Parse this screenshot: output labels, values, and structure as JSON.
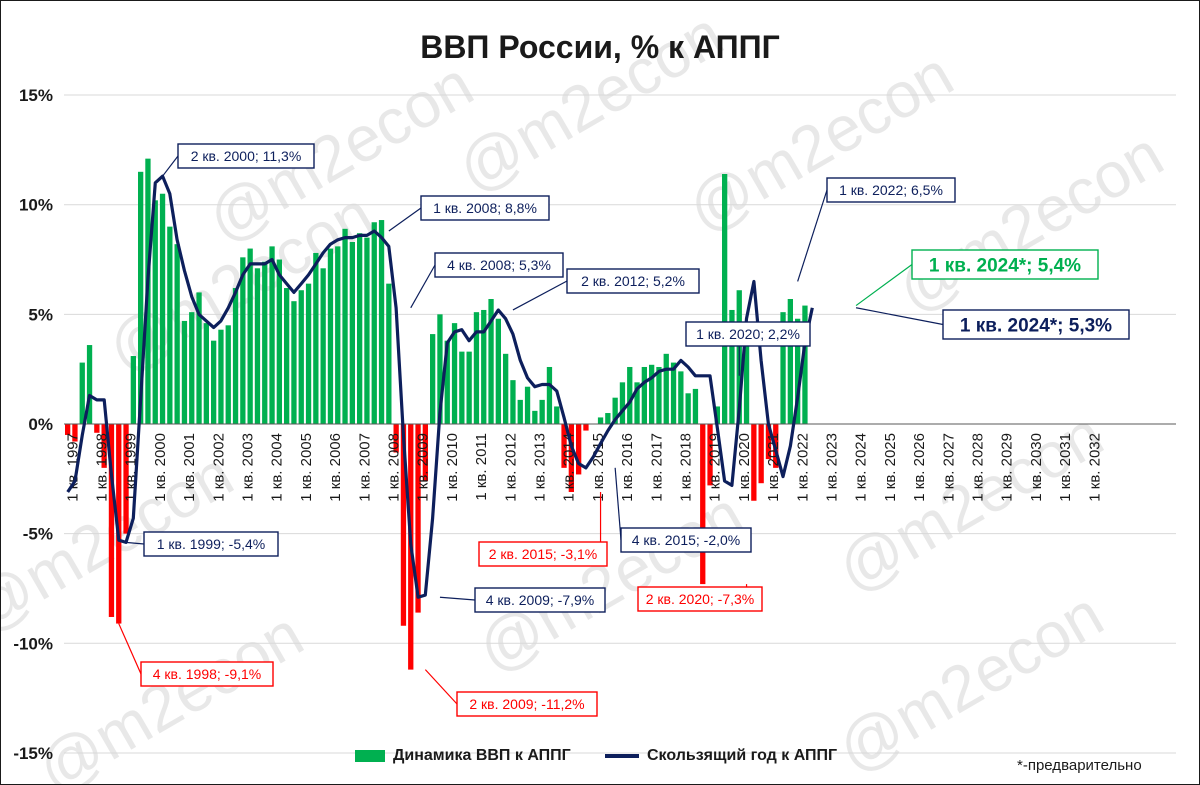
{
  "title": "ВВП России, % к АППГ",
  "footnote": "*-предварительно",
  "colors": {
    "positive": "#00b050",
    "negative": "#ff0000",
    "line": "#0d1f5c",
    "grid": "#d9d9d9",
    "watermark": "#d9d9d9"
  },
  "watermark": "@m2econ",
  "chart_data": {
    "type": "bar+line",
    "ylim": [
      -15,
      15
    ],
    "y_ticks": [
      "15%",
      "10%",
      "5%",
      "0%",
      "-5%",
      "-10%",
      "-15%"
    ],
    "x_labels": [
      "1 кв. 1997",
      "1 кв. 1998",
      "1 кв. 1999",
      "1 кв. 2000",
      "1 кв. 2001",
      "1 кв. 2002",
      "1 кв. 2003",
      "1 кв. 2004",
      "1 кв. 2005",
      "1 кв. 2006",
      "1 кв. 2007",
      "1 кв. 2008",
      "1 кв. 2009",
      "1 кв. 2010",
      "1 кв. 2011",
      "1 кв. 2012",
      "1 кв. 2013",
      "1 кв. 2014",
      "1 кв. 2015",
      "1 кв. 2016",
      "1 кв. 2017",
      "1 кв. 2018",
      "1 кв. 2019",
      "1 кв. 2020",
      "1 кв. 2021",
      "1 кв. 2022",
      "1 кв. 2023",
      "1 кв. 2024",
      "1 кв. 2025",
      "1 кв. 2026",
      "1 кв. 2027",
      "1 кв. 2028",
      "1 кв. 2029",
      "1 кв. 2030",
      "1 кв. 2031",
      "1 кв. 2032"
    ],
    "series": [
      {
        "name": "Динамика ВВП к АППГ",
        "type": "bar",
        "values": [
          -0.5,
          -0.8,
          2.8,
          3.6,
          -0.4,
          -2.0,
          -8.8,
          -9.1,
          -5.0,
          3.1,
          11.5,
          12.1,
          10.2,
          10.5,
          9.0,
          8.2,
          4.7,
          5.1,
          6.0,
          4.6,
          3.8,
          4.3,
          4.5,
          6.2,
          7.6,
          8.0,
          7.1,
          7.4,
          8.1,
          7.5,
          6.2,
          5.6,
          6.1,
          6.4,
          7.8,
          7.1,
          8.0,
          8.1,
          8.9,
          8.3,
          8.7,
          8.5,
          9.2,
          9.3,
          6.4,
          -1.3,
          -9.2,
          -11.2,
          -8.6,
          -2.6,
          4.1,
          5.0,
          3.8,
          4.6,
          3.3,
          3.3,
          5.1,
          5.2,
          5.7,
          4.8,
          3.2,
          2.0,
          1.1,
          1.7,
          0.6,
          1.1,
          2.6,
          0.8,
          -2.0,
          -3.1,
          -2.3,
          -0.3,
          0.0,
          0.3,
          0.5,
          1.2,
          1.9,
          2.6,
          1.9,
          2.6,
          2.7,
          2.6,
          3.2,
          2.8,
          2.4,
          1.4,
          1.6,
          -7.3,
          -2.8,
          0.8,
          11.4,
          5.2,
          6.1,
          3.7,
          -3.5,
          -2.7,
          -1.6,
          -2.0,
          5.1,
          5.7,
          4.8,
          5.4
        ],
        "annotations": [
          {
            "label": "4 кв. 1998; -9,1%",
            "value": -9.1
          },
          {
            "label": "2 кв. 2009; -11,2%",
            "value": -11.2
          },
          {
            "label": "2 кв. 2015; -3,1%",
            "value": -3.1
          },
          {
            "label": "2 кв. 2020; -7,3%",
            "value": -7.3
          },
          {
            "label": "1 кв. 2024*; 5,4%",
            "value": 5.4
          }
        ]
      },
      {
        "name": "Скользящий год к АППГ",
        "type": "line",
        "values": [
          -3.1,
          -2.6,
          -0.5,
          1.3,
          1.1,
          1.1,
          -2.3,
          -5.3,
          -5.4,
          -4.3,
          1.1,
          6.6,
          11.0,
          11.3,
          10.5,
          8.4,
          7.0,
          5.8,
          5.0,
          4.7,
          4.4,
          4.7,
          5.3,
          6.0,
          6.8,
          7.3,
          7.3,
          7.3,
          7.5,
          6.8,
          6.4,
          6.0,
          6.4,
          6.8,
          7.3,
          7.8,
          8.2,
          8.4,
          8.5,
          8.5,
          8.6,
          8.6,
          8.8,
          8.5,
          8.1,
          5.3,
          -0.5,
          -5.5,
          -7.9,
          -7.8,
          -4.3,
          0.5,
          3.7,
          4.2,
          4.3,
          3.8,
          4.2,
          4.2,
          4.7,
          5.2,
          4.8,
          4.1,
          2.9,
          2.1,
          1.7,
          1.8,
          1.8,
          1.5,
          0.3,
          -1.0,
          -1.8,
          -2.0,
          -1.5,
          -0.9,
          -0.3,
          0.2,
          0.6,
          1.0,
          1.6,
          1.9,
          2.1,
          2.4,
          2.5,
          2.5,
          2.9,
          2.6,
          2.2,
          2.2,
          2.2,
          -0.2,
          -2.6,
          -2.8,
          0.7,
          4.8,
          6.5,
          2.9,
          0.0,
          -1.2,
          -2.4,
          -1.0,
          1.2,
          3.7,
          5.3
        ],
        "annotations": [
          {
            "label": "2 кв. 2000; 11,3%",
            "value": 11.3
          },
          {
            "label": "1 кв. 1999; -5,4%",
            "value": -5.4
          },
          {
            "label": "1 кв. 2008; 8,8%",
            "value": 8.8
          },
          {
            "label": "4 кв. 2008; 5,3%",
            "value": 5.3
          },
          {
            "label": "4 кв. 2009; -7,9%",
            "value": -7.9
          },
          {
            "label": "2 кв. 2012; 5,2%",
            "value": 5.2
          },
          {
            "label": "4 кв. 2015; -2,0%",
            "value": -2.0
          },
          {
            "label": "1 кв. 2020; 2,2%",
            "value": 2.2
          },
          {
            "label": "1 кв. 2022; 6,5%",
            "value": 6.5
          },
          {
            "label": "1 кв. 2024*; 5,3%",
            "value": 5.3
          }
        ]
      }
    ],
    "legend_position": "bottom",
    "grid": true
  }
}
